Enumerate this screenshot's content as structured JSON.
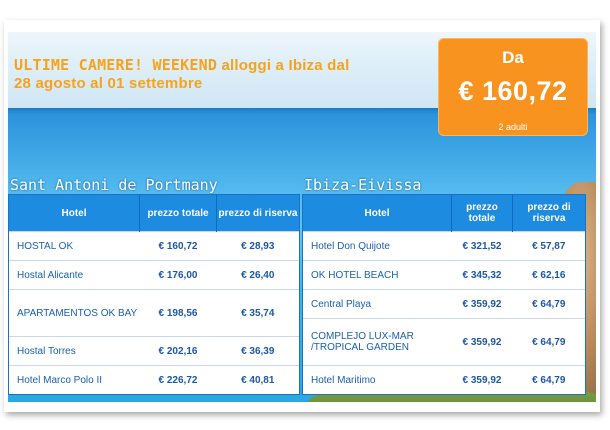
{
  "headline": {
    "part1": "ULTIME CAMERE! WEEKEND",
    "part2": "alloggi a Ibiza dal",
    "line2": "28 agosto al 01 settembre"
  },
  "price_box": {
    "label": "Da",
    "price": "€ 160,72",
    "sub": "2 adulti"
  },
  "left": {
    "city": "Sant Antoni de Portmany",
    "headers": {
      "hotel": "Hotel",
      "total": "prezzo totale",
      "reserve": "prezzo di riserva"
    },
    "rows": [
      {
        "name": "HOSTAL OK",
        "total": "€ 160,72",
        "reserve": "€ 28,93"
      },
      {
        "name": "Hostal Alicante",
        "total": "€ 176,00",
        "reserve": "€ 26,40"
      },
      {
        "name": "APARTAMENTOS OK BAY",
        "total": "€ 198,56",
        "reserve": "€ 35,74"
      },
      {
        "name": "Hostal Torres",
        "total": "€ 202,16",
        "reserve": "€ 36,39"
      },
      {
        "name": "Hotel Marco Polo II",
        "total": "€ 226,72",
        "reserve": "€ 40,81"
      }
    ]
  },
  "right": {
    "city": "Ibiza-Eivissa",
    "headers": {
      "hotel": "Hotel",
      "total": "prezzo totale",
      "reserve": "prezzo di riserva"
    },
    "rows": [
      {
        "name": "Hotel Don Quijote",
        "total": "€ 321,52",
        "reserve": "€ 57,87"
      },
      {
        "name": "OK HOTEL BEACH",
        "total": "€ 345,32",
        "reserve": "€ 62,16"
      },
      {
        "name": "Central Playa",
        "total": "€ 359,92",
        "reserve": "€ 64,79"
      },
      {
        "name": "COMPLEJO LUX-MAR /TROPICAL GARDEN",
        "total": "€ 359,92",
        "reserve": "€ 64,79"
      },
      {
        "name": "Hotel Maritimo",
        "total": "€ 359,92",
        "reserve": "€ 64,79"
      }
    ]
  },
  "colors": {
    "accent_orange": "#f7931e",
    "header_blue": "#1c8be0",
    "link_blue": "#1a5fb0"
  }
}
